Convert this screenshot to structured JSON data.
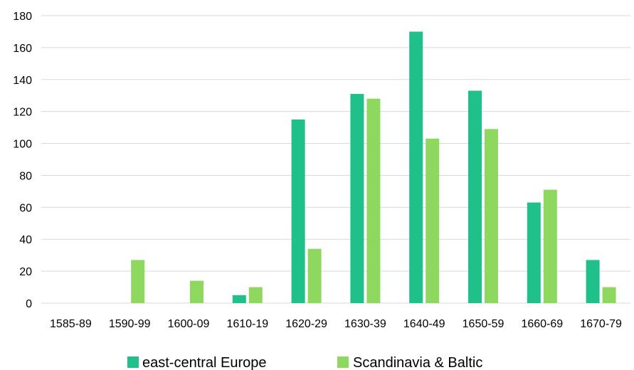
{
  "chart_data": {
    "type": "bar",
    "categories": [
      "1585-89",
      "1590-99",
      "1600-09",
      "1610-19",
      "1620-29",
      "1630-39",
      "1640-49",
      "1650-59",
      "1660-69",
      "1670-79"
    ],
    "series": [
      {
        "name": "east-central Europe",
        "color": "#20c08a",
        "values": [
          0,
          0,
          0,
          5,
          115,
          131,
          170,
          133,
          63,
          27
        ]
      },
      {
        "name": "Scandinavia & Baltic",
        "color": "#8fd860",
        "values": [
          0,
          27,
          14,
          10,
          34,
          128,
          103,
          109,
          71,
          10
        ]
      }
    ],
    "yticks": [
      0,
      20,
      40,
      60,
      80,
      100,
      120,
      140,
      160,
      180
    ],
    "ylim": [
      0,
      180
    ],
    "grid": true,
    "legend_position": "bottom-center"
  }
}
